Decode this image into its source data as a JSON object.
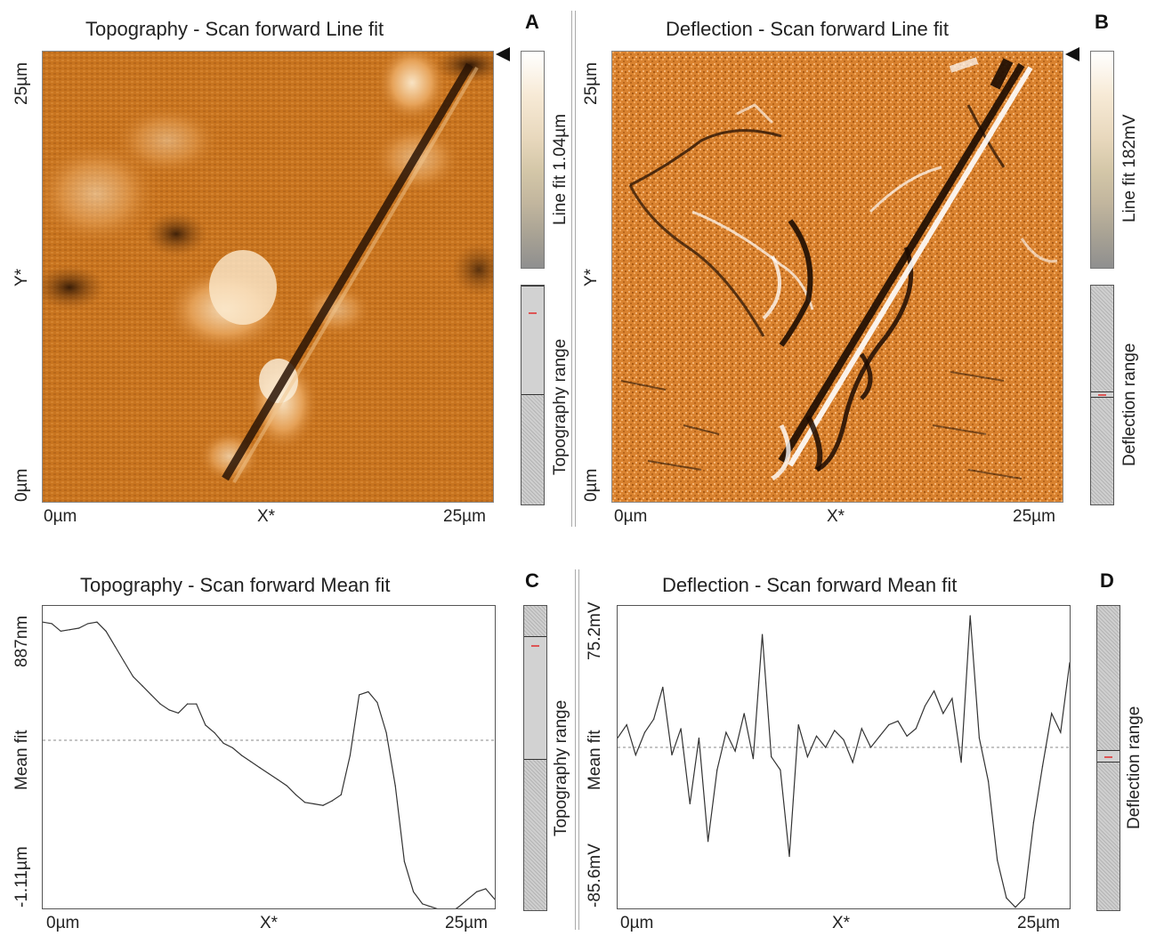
{
  "panels": {
    "A": {
      "letter": "A",
      "title": "Topography - Scan forward   Line fit",
      "y_top": "25µm",
      "y_mid": "Y*",
      "y_bottom": "0µm",
      "x_left": "0µm",
      "x_mid": "X*",
      "x_right": "25µm",
      "colorbar_label": "Line fit 1.04µm",
      "range_label": "Topography range",
      "range_position": {
        "top": 0.0,
        "bottom": 0.49
      },
      "marker_position": 0.12
    },
    "B": {
      "letter": "B",
      "title": "Deflection - Scan forward   Line fit",
      "y_top": "25µm",
      "y_mid": "Y*",
      "y_bottom": "0µm",
      "x_left": "0µm",
      "x_mid": "X*",
      "x_right": "25µm",
      "colorbar_label": "Line fit 182mV",
      "range_label": "Deflection range",
      "range_position": {
        "top": 0.485,
        "bottom": 0.505
      },
      "marker_position": 0.495
    },
    "C": {
      "letter": "C",
      "title": "Topography - Scan forward   Mean fit",
      "y_top": "887nm",
      "y_mid": "Mean fit",
      "y_bottom": "-1.11µm",
      "x_left": "0µm",
      "x_mid": "X*",
      "x_right": "25µm",
      "range_label": "Topography range",
      "range_position": {
        "top": 0.1,
        "bottom": 0.5
      },
      "marker_position": 0.13
    },
    "D": {
      "letter": "D",
      "title": "Deflection - Scan forward   Mean fit",
      "y_top": "75.2mV",
      "y_mid": "Mean fit",
      "y_bottom": "-85.6mV",
      "x_left": "0µm",
      "x_mid": "X*",
      "x_right": "25µm",
      "range_label": "Deflection range",
      "range_position": {
        "top": 0.475,
        "bottom": 0.51
      },
      "marker_position": 0.493
    }
  },
  "colors": {
    "afm_orange": "#c8741f",
    "afm_dark": "#2a1405",
    "afm_light": "#f7dcb0",
    "marker": "#d55555"
  },
  "chart_data": [
    {
      "type": "line",
      "panel": "C",
      "xlabel": "X*",
      "ylabel": "Mean fit",
      "xlim": [
        0,
        25
      ],
      "ylim": [
        -1.11,
        0.887
      ],
      "mean_line": 0.0,
      "x": [
        0,
        0.5,
        1,
        1.5,
        2,
        2.5,
        3,
        3.5,
        4,
        4.5,
        5,
        5.5,
        6,
        6.5,
        7,
        7.5,
        8,
        8.5,
        9,
        9.5,
        10,
        10.5,
        11,
        11.5,
        12,
        12.5,
        13,
        13.5,
        14,
        14.5,
        15,
        15.5,
        16,
        16.5,
        17,
        17.5,
        18,
        18.5,
        19,
        19.5,
        20,
        20.5,
        21,
        21.5,
        22,
        22.5,
        23,
        23.5,
        24,
        24.5,
        25
      ],
      "y": [
        0.78,
        0.77,
        0.72,
        0.73,
        0.74,
        0.77,
        0.78,
        0.72,
        0.62,
        0.52,
        0.42,
        0.36,
        0.3,
        0.24,
        0.2,
        0.18,
        0.24,
        0.24,
        0.1,
        0.05,
        -0.02,
        -0.05,
        -0.1,
        -0.14,
        -0.18,
        -0.22,
        -0.26,
        -0.3,
        -0.36,
        -0.41,
        -0.42,
        -0.43,
        -0.4,
        -0.36,
        -0.1,
        0.3,
        0.32,
        0.25,
        0.05,
        -0.3,
        -0.8,
        -1.0,
        -1.08,
        -1.1,
        -1.12,
        -1.14,
        -1.1,
        -1.05,
        -1.0,
        -0.98,
        -1.05
      ]
    },
    {
      "type": "line",
      "panel": "D",
      "xlabel": "X*",
      "ylabel": "Mean fit",
      "xlim": [
        0,
        25
      ],
      "ylim": [
        -85.6,
        75.2
      ],
      "mean_line": 0.0,
      "x": [
        0,
        0.5,
        1,
        1.5,
        2,
        2.5,
        3,
        3.5,
        4,
        4.5,
        5,
        5.5,
        6,
        6.5,
        7,
        7.5,
        8,
        8.5,
        9,
        9.5,
        10,
        10.5,
        11,
        11.5,
        12,
        12.5,
        13,
        13.5,
        14,
        14.5,
        15,
        15.5,
        16,
        16.5,
        17,
        17.5,
        18,
        18.5,
        19,
        19.5,
        20,
        20.5,
        21,
        21.5,
        22,
        22.5,
        23,
        23.5,
        24,
        24.5,
        25
      ],
      "y": [
        5,
        12,
        -4,
        8,
        15,
        32,
        -4,
        10,
        -30,
        5,
        -50,
        -12,
        8,
        -2,
        18,
        -6,
        60,
        -5,
        -12,
        -58,
        12,
        -5,
        6,
        0,
        9,
        4,
        -8,
        10,
        0,
        6,
        12,
        14,
        6,
        10,
        22,
        30,
        18,
        26,
        -8,
        70,
        5,
        -18,
        -60,
        -80,
        -85,
        -80,
        -40,
        -10,
        18,
        8,
        45
      ]
    }
  ]
}
